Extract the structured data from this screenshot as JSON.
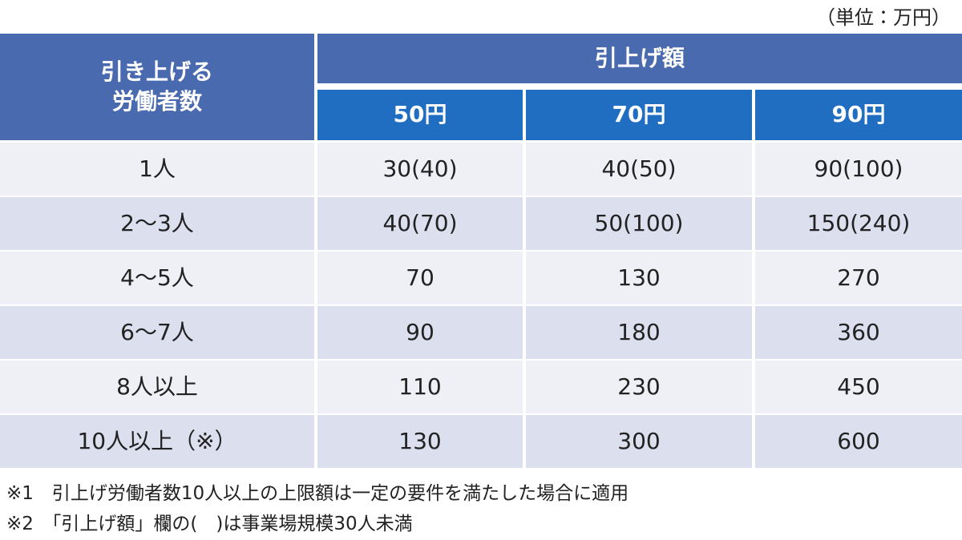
{
  "unit": "（単位：万円）",
  "table": {
    "corner_header": [
      "引き上げる",
      "労働者数"
    ],
    "group_header": "引上げ額",
    "columns": [
      "50円",
      "70円",
      "90円"
    ],
    "rows": [
      [
        "1人",
        "30(40)",
        "40(50)",
        "90(100)"
      ],
      [
        "2〜3人",
        "40(70)",
        "50(100)",
        "150(240)"
      ],
      [
        "4〜5人",
        "70",
        "130",
        "270"
      ],
      [
        "6〜7人",
        "90",
        "180",
        "360"
      ],
      [
        "8人以上",
        "110",
        "230",
        "450"
      ],
      [
        "10人以上（※）",
        "130",
        "300",
        "600"
      ]
    ]
  },
  "notes": [
    "※1　引上げ労働者数10人以上の上限額は一定の要件を満たした場合に適用",
    "※2　「引上げ額」欄の(　)は事業場規模30人未満"
  ]
}
